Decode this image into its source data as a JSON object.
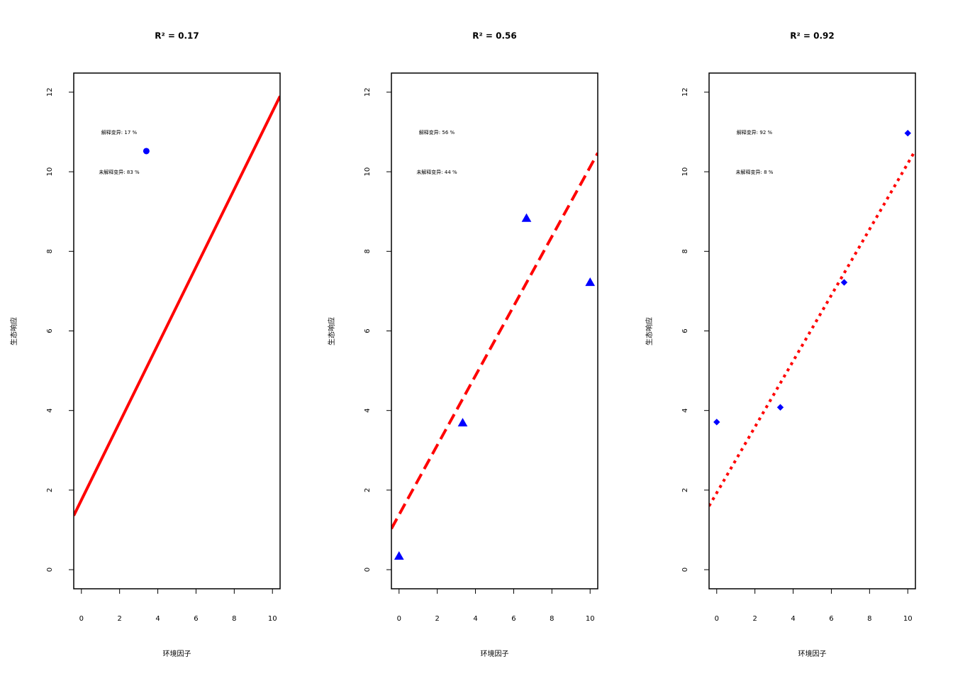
{
  "chart_data": [
    {
      "type": "scatter",
      "title": "R² = 0.17",
      "xlabel": "环境因子",
      "ylabel": "生态响应",
      "annotations": [
        "解释变异: 17 %",
        "未解释变异: 83 %"
      ],
      "x": [
        3.4
      ],
      "values": [
        10.52
      ],
      "color": "#0000ff",
      "marker": "circle",
      "fit": {
        "intercept": 1.75,
        "slope": 0.976,
        "color": "#ff0000",
        "linestyle": "solid"
      },
      "xlim": [
        -0.4,
        10.4
      ],
      "ylim": [
        -0.48,
        12.48
      ],
      "xticks": [
        0,
        2,
        4,
        6,
        8,
        10
      ],
      "yticks": [
        0,
        2,
        4,
        6,
        8,
        10,
        12
      ]
    },
    {
      "type": "scatter",
      "title": "R² = 0.56",
      "xlabel": "环境因子",
      "ylabel": "生态响应",
      "annotations": [
        "解释变异: 56 %",
        "未解释变异: 44 %"
      ],
      "x": [
        0,
        3.33,
        6.67,
        10
      ],
      "values": [
        0.34,
        3.69,
        8.83,
        7.22
      ],
      "color": "#0000ff",
      "marker": "triangle",
      "fit": {
        "intercept": 1.38,
        "slope": 0.874,
        "color": "#ff0000",
        "linestyle": "dashed"
      },
      "xlim": [
        -0.4,
        10.4
      ],
      "ylim": [
        -0.48,
        12.48
      ],
      "xticks": [
        0,
        2,
        4,
        6,
        8,
        10
      ],
      "yticks": [
        0,
        2,
        4,
        6,
        8,
        10,
        12
      ]
    },
    {
      "type": "scatter",
      "title": "R² = 0.92",
      "xlabel": "环境因子",
      "ylabel": "生态响应",
      "annotations": [
        "解释变异: 92 %",
        "未解释变异: 8 %"
      ],
      "x": [
        0,
        3.33,
        6.67,
        10
      ],
      "values": [
        3.71,
        4.08,
        7.22,
        10.97
      ],
      "color": "#0000ff",
      "marker": "diamond",
      "fit": {
        "intercept": 1.93,
        "slope": 0.828,
        "color": "#ff0000",
        "linestyle": "dotted"
      },
      "xlim": [
        -0.4,
        10.4
      ],
      "ylim": [
        -0.48,
        12.48
      ],
      "xticks": [
        0,
        2,
        4,
        6,
        8,
        10
      ],
      "yticks": [
        0,
        2,
        4,
        6,
        8,
        10,
        12
      ]
    }
  ]
}
